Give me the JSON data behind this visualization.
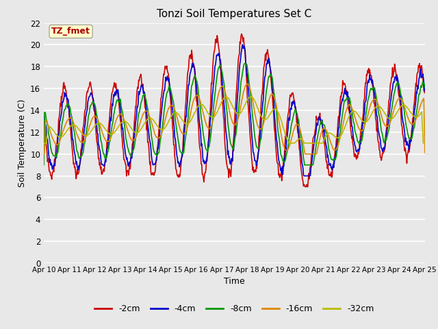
{
  "title": "Tonzi Soil Temperatures Set C",
  "xlabel": "Time",
  "ylabel": "Soil Temperature (C)",
  "ylim": [
    0,
    22
  ],
  "yticks": [
    0,
    2,
    4,
    6,
    8,
    10,
    12,
    14,
    16,
    18,
    20,
    22
  ],
  "x_tick_labels": [
    "Apr 10",
    "Apr 11",
    "Apr 12",
    "Apr 13",
    "Apr 14",
    "Apr 15",
    "Apr 16",
    "Apr 17",
    "Apr 18",
    "Apr 19",
    "Apr 20",
    "Apr 21",
    "Apr 22",
    "Apr 23",
    "Apr 24",
    "Apr 25"
  ],
  "series_colors": [
    "#cc0000",
    "#0000cc",
    "#009900",
    "#dd8800",
    "#bbbb00"
  ],
  "series_labels": [
    "-2cm",
    "-4cm",
    "-8cm",
    "-16cm",
    "-32cm"
  ],
  "annotation_text": "TZ_fmet",
  "annotation_color": "#aa0000",
  "annotation_bg": "#ffffcc",
  "fig_bg": "#e8e8e8",
  "plot_bg": "#e8e8e8",
  "grid_color": "#ffffff",
  "linewidth": 1.2
}
